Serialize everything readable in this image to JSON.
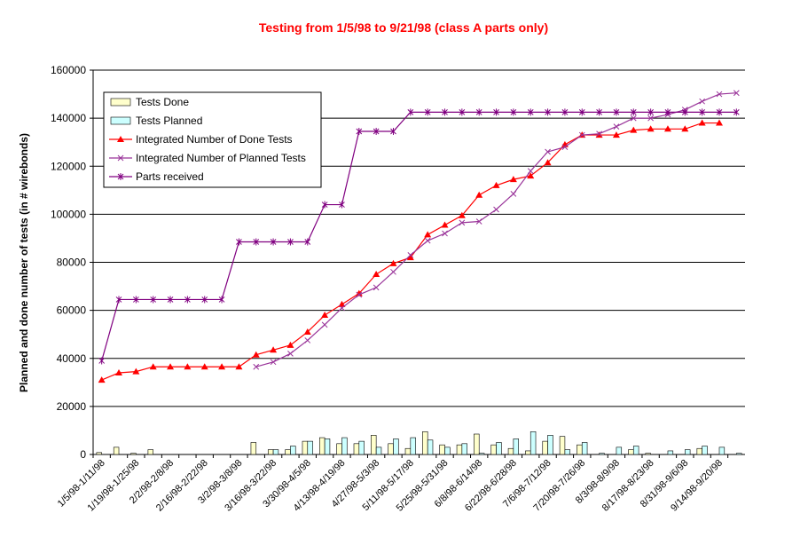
{
  "chart_data": {
    "type": "combo",
    "title": "Testing from 1/5/98 to 9/21/98 (class A parts only)",
    "y_label": "Planned and done number of tests (in # wirebonds)",
    "categories": [
      "1/5/98-1/11/98",
      null,
      "1/19/98-1/25/98",
      null,
      "2/2/98-2/8/98",
      null,
      "2/16/98-2/22/98",
      null,
      "3/2/98-3/8/98",
      null,
      "3/16/98-3/22/98",
      null,
      "3/30/98-4/5/98",
      null,
      "4/13/98-4/19/98",
      null,
      "4/27/98-5/3/98",
      null,
      "5/11/98-5/17/98",
      null,
      "5/25/98-5/31/98",
      null,
      "6/8/98-6/14/98",
      null,
      "6/22/98-6/28/98",
      null,
      "7/6/98-7/12/98",
      null,
      "7/20/98-7/26/98",
      null,
      "8/3/98-8/9/98",
      null,
      "8/17/98-8/23/98",
      null,
      "8/31/98-9/6/98",
      null,
      "9/14/98-9/20/98",
      null
    ],
    "series": [
      {
        "name": "Tests Done",
        "kind": "bar",
        "color": "#ffffcc",
        "values": [
          800,
          3000,
          500,
          2000,
          0,
          0,
          0,
          0,
          0,
          5000,
          2000,
          2000,
          5500,
          7000,
          4500,
          4500,
          8000,
          4500,
          2500,
          9500,
          4000,
          4000,
          8500,
          4000,
          2500,
          1500,
          5500,
          7500,
          4000,
          0,
          0,
          2000,
          500,
          0,
          0,
          2500,
          0,
          0
        ]
      },
      {
        "name": "Tests Planned",
        "kind": "bar",
        "color": "#ccffff",
        "values": [
          0,
          0,
          0,
          0,
          0,
          0,
          0,
          0,
          0,
          0,
          2000,
          3500,
          5500,
          6500,
          7000,
          5500,
          3000,
          6500,
          7000,
          6000,
          3000,
          4500,
          500,
          5000,
          6500,
          9500,
          8000,
          2000,
          5000,
          500,
          3000,
          3500,
          0,
          1500,
          2000,
          3500,
          3000,
          500
        ]
      },
      {
        "name": "Integrated Number of Done Tests",
        "kind": "line",
        "marker": "triangle",
        "color": "#ff0000",
        "values": [
          31000,
          34000,
          34500,
          36500,
          36500,
          36500,
          36500,
          36500,
          36500,
          41500,
          43500,
          45500,
          51000,
          58000,
          62500,
          67000,
          75000,
          79500,
          82000,
          91500,
          95500,
          99500,
          108000,
          112000,
          114500,
          116000,
          121500,
          129000,
          133000,
          133000,
          133000,
          135000,
          135500,
          135500,
          135500,
          138000,
          138000,
          null
        ]
      },
      {
        "name": "Integrated Number of Planned Tests",
        "kind": "line",
        "marker": "x",
        "color": "#993399",
        "values": [
          null,
          null,
          null,
          null,
          null,
          null,
          null,
          null,
          null,
          36500,
          38500,
          42000,
          47500,
          54000,
          61000,
          66500,
          69500,
          76000,
          83000,
          89000,
          92000,
          96500,
          97000,
          102000,
          108500,
          118000,
          126000,
          128000,
          133000,
          133500,
          136500,
          140000,
          140000,
          141500,
          143500,
          147000,
          150000,
          150500
        ]
      },
      {
        "name": "Parts received",
        "kind": "line",
        "marker": "star",
        "color": "#800080",
        "values": [
          39000,
          64500,
          64500,
          64500,
          64500,
          64500,
          64500,
          64500,
          88500,
          88500,
          88500,
          88500,
          88500,
          104000,
          104000,
          134500,
          134500,
          134500,
          142500,
          142500,
          142500,
          142500,
          142500,
          142500,
          142500,
          142500,
          142500,
          142500,
          142500,
          142500,
          142500,
          142500,
          142500,
          142500,
          142500,
          142500,
          142500,
          142500
        ]
      }
    ],
    "ylim": [
      0,
      160000
    ],
    "yticks": [
      0,
      20000,
      40000,
      60000,
      80000,
      100000,
      120000,
      140000,
      160000
    ],
    "grid": true,
    "legend": "top-left"
  }
}
